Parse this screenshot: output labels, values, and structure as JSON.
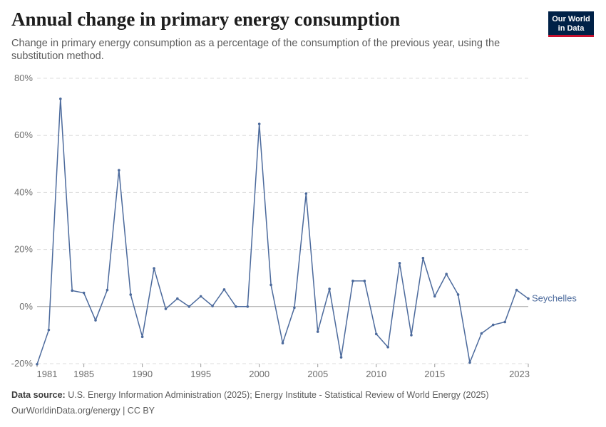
{
  "header": {
    "title": "Annual change in primary energy consumption",
    "subtitle": "Change in primary energy consumption as a percentage of the consumption of the previous year, using the substitution method."
  },
  "logo": {
    "line1": "Our World",
    "line2": "in Data",
    "bg_color": "#002147",
    "accent_color": "#c8102e"
  },
  "footer": {
    "source_label": "Data source:",
    "source_text": "U.S. Energy Information Administration (2025); Energy Institute - Statistical Review of World Energy (2025)",
    "credit": "OurWorldinData.org/energy | CC BY"
  },
  "chart_data": {
    "type": "line",
    "title": "Annual change in primary energy consumption",
    "xlabel": "",
    "ylabel": "",
    "ylim": [
      -20,
      80
    ],
    "xlim": [
      1981,
      2023
    ],
    "y_ticks": [
      -20,
      0,
      20,
      40,
      60,
      80
    ],
    "y_tick_labels": [
      "-20%",
      "0%",
      "20%",
      "40%",
      "60%",
      "80%"
    ],
    "x_ticks": [
      1981,
      1985,
      1990,
      1995,
      2000,
      2005,
      2010,
      2015,
      2023
    ],
    "x_tick_labels": [
      "1981",
      "1985",
      "1990",
      "1995",
      "2000",
      "2005",
      "2010",
      "2015",
      "2023"
    ],
    "grid": "horizontal dashed",
    "legend": "inline label at line end",
    "line_color": "#4c6a9c",
    "series": [
      {
        "name": "Seychelles",
        "x": [
          1981,
          1982,
          1983,
          1984,
          1985,
          1986,
          1987,
          1988,
          1989,
          1990,
          1991,
          1992,
          1993,
          1994,
          1995,
          1996,
          1997,
          1998,
          1999,
          2000,
          2001,
          2002,
          2003,
          2004,
          2005,
          2006,
          2007,
          2008,
          2009,
          2010,
          2011,
          2012,
          2013,
          2014,
          2015,
          2016,
          2017,
          2018,
          2019,
          2020,
          2021,
          2022,
          2023
        ],
        "values": [
          -20.2,
          -8.2,
          72.8,
          5.6,
          4.8,
          -4.8,
          5.8,
          47.8,
          4.2,
          -10.6,
          13.4,
          -0.8,
          2.8,
          0.0,
          3.6,
          0.2,
          6.0,
          0.0,
          0.0,
          64.0,
          7.6,
          -12.8,
          -0.4,
          39.6,
          -8.8,
          6.2,
          -17.8,
          9.0,
          9.0,
          -9.6,
          -14.2,
          15.2,
          -10.0,
          17.0,
          3.6,
          11.4,
          4.2,
          -19.6,
          -9.4,
          -6.4,
          -5.4,
          5.8,
          2.8
        ]
      }
    ]
  }
}
